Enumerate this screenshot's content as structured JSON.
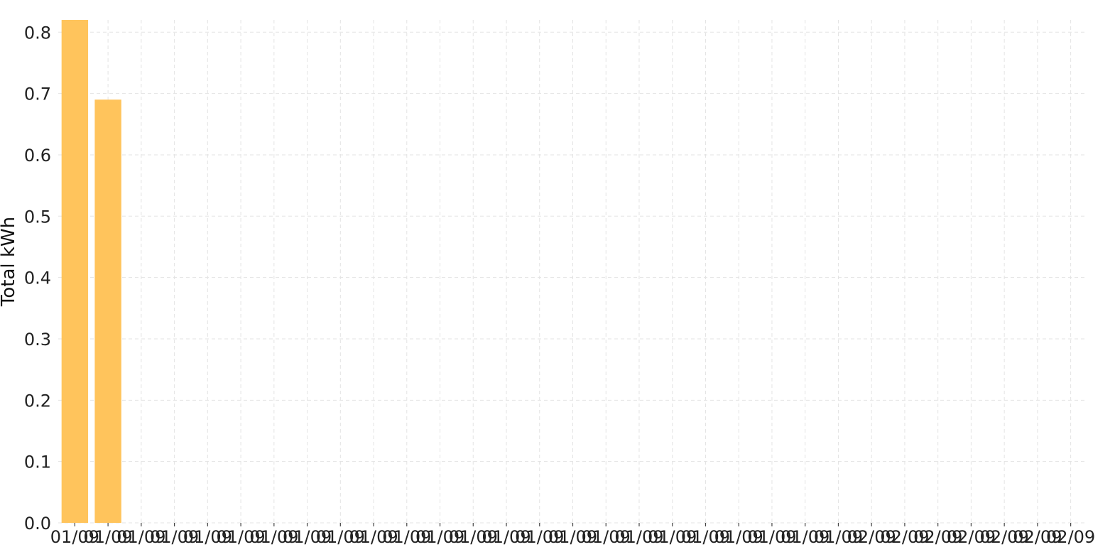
{
  "chart_data": {
    "type": "bar",
    "ylabel": "Total kWh",
    "xlabel": "",
    "ylim": [
      0,
      0.82
    ],
    "yticks": [
      "0.0",
      "0.1",
      "0.2",
      "0.3",
      "0.4",
      "0.5",
      "0.6",
      "0.7",
      "0.8"
    ],
    "grid": true,
    "categories": [
      "01/09",
      "01/09",
      "01/09",
      "01/09",
      "01/09",
      "01/09",
      "01/09",
      "01/09",
      "01/09",
      "01/09",
      "01/09",
      "01/09",
      "01/09",
      "01/09",
      "01/09",
      "01/09",
      "01/09",
      "01/09",
      "01/09",
      "01/09",
      "01/09",
      "01/09",
      "01/09",
      "01/09",
      "02/09",
      "02/09",
      "02/09",
      "02/09",
      "02/09",
      "02/09",
      "02/09"
    ],
    "values": [
      0.82,
      0.69,
      0,
      0,
      0,
      0,
      0,
      0,
      0,
      0,
      0,
      0,
      0,
      0,
      0,
      0,
      0,
      0,
      0,
      0,
      0,
      0,
      0,
      0,
      0,
      0,
      0,
      0,
      0,
      0,
      0
    ],
    "colors": {
      "bar": "#ffc45c"
    }
  }
}
